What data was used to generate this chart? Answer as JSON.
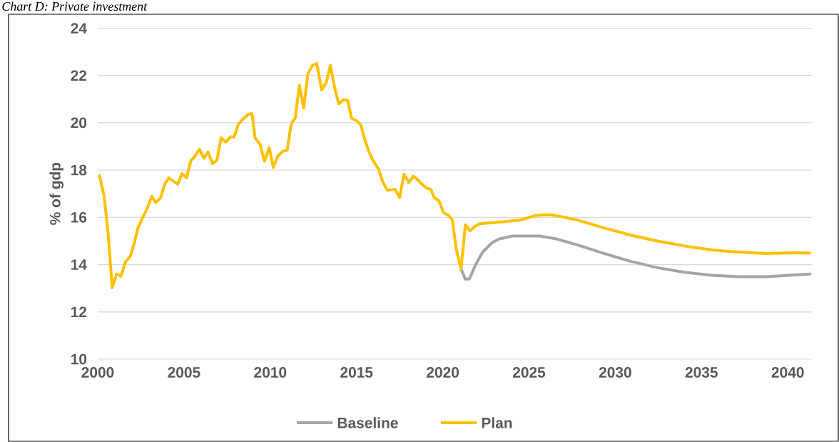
{
  "chart_data": {
    "type": "line",
    "title": "Chart D: Private investment",
    "ylabel": "% of gdp",
    "xlim": [
      2000,
      2041.4
    ],
    "ylim": [
      10,
      24
    ],
    "xticks": [
      2000,
      2005,
      2010,
      2015,
      2020,
      2025,
      2030,
      2035,
      2040
    ],
    "yticks": [
      10,
      12,
      14,
      16,
      18,
      20,
      22,
      24
    ],
    "grid": "y",
    "legend": "bottom",
    "marker": "none",
    "line_style": "solid",
    "series": [
      {
        "name": "Baseline",
        "color": "#a5a5a5",
        "x": [
          2021.06,
          2021.3,
          2021.54,
          2021.89,
          2022.3,
          2022.85,
          2023.26,
          2024.04,
          2024.59,
          2025.6,
          2026.63,
          2027.73,
          2029.3,
          2030.87,
          2032.44,
          2034.0,
          2035.58,
          2037.15,
          2038.72,
          2040.3,
          2041.28
        ],
        "values": [
          13.82,
          13.39,
          13.39,
          13.97,
          14.52,
          14.92,
          15.08,
          15.21,
          15.21,
          15.21,
          15.08,
          14.85,
          14.48,
          14.14,
          13.87,
          13.68,
          13.55,
          13.49,
          13.49,
          13.56,
          13.6
        ]
      },
      {
        "name": "Plan",
        "color": "#ffc000",
        "x": [
          2000.1,
          2000.37,
          2000.6,
          2000.84,
          2001.09,
          2001.34,
          2001.61,
          2001.89,
          2002.12,
          2002.33,
          2002.6,
          2002.9,
          2003.13,
          2003.36,
          2003.65,
          2003.88,
          2004.12,
          2004.63,
          2004.88,
          2005.15,
          2005.4,
          2005.6,
          2005.9,
          2006.15,
          2006.39,
          2006.66,
          2006.91,
          2007.15,
          2007.42,
          2007.7,
          2007.9,
          2008.15,
          2008.46,
          2008.73,
          2008.94,
          2009.12,
          2009.42,
          2009.66,
          2009.94,
          2010.18,
          2010.45,
          2010.73,
          2010.98,
          2011.21,
          2011.45,
          2011.69,
          2011.94,
          2012.18,
          2012.45,
          2012.7,
          2012.98,
          2013.24,
          2013.49,
          2013.72,
          2013.97,
          2014.24,
          2014.48,
          2014.72,
          2015.0,
          2015.25,
          2015.48,
          2015.76,
          2015.99,
          2016.28,
          2016.54,
          2016.79,
          2017.23,
          2017.5,
          2017.75,
          2018.03,
          2018.3,
          2018.58,
          2018.86,
          2019.1,
          2019.3,
          2019.5,
          2019.79,
          2020.03,
          2020.3,
          2020.55,
          2020.79,
          2021.06,
          2021.31,
          2021.58,
          2021.89,
          2022.16,
          2023.33,
          2024.59,
          2025.37,
          2026.31,
          2027.73,
          2029.3,
          2030.87,
          2032.44,
          2034.0,
          2035.58,
          2037.15,
          2038.72,
          2040.3,
          2041.28
        ],
        "values": [
          17.76,
          16.89,
          15.33,
          13.02,
          13.6,
          13.51,
          14.12,
          14.35,
          14.92,
          15.55,
          15.98,
          16.43,
          16.89,
          16.62,
          16.84,
          17.4,
          17.67,
          17.4,
          17.85,
          17.67,
          18.4,
          18.55,
          18.88,
          18.5,
          18.76,
          18.27,
          18.42,
          19.37,
          19.18,
          19.41,
          19.39,
          19.93,
          20.19,
          20.36,
          20.39,
          19.37,
          19.07,
          18.37,
          18.95,
          18.1,
          18.6,
          18.8,
          18.83,
          19.93,
          20.21,
          21.59,
          20.63,
          22.07,
          22.43,
          22.5,
          21.39,
          21.69,
          22.43,
          21.52,
          20.8,
          20.97,
          20.95,
          20.19,
          20.09,
          19.91,
          19.28,
          18.7,
          18.37,
          18.03,
          17.47,
          17.14,
          17.19,
          16.84,
          17.82,
          17.47,
          17.74,
          17.57,
          17.36,
          17.22,
          17.19,
          16.84,
          16.69,
          16.21,
          16.1,
          15.91,
          14.62,
          13.82,
          15.68,
          15.43,
          15.63,
          15.73,
          15.8,
          15.9,
          16.08,
          16.11,
          15.9,
          15.56,
          15.25,
          15.0,
          14.79,
          14.62,
          14.53,
          14.47,
          14.5,
          14.49
        ]
      }
    ]
  }
}
